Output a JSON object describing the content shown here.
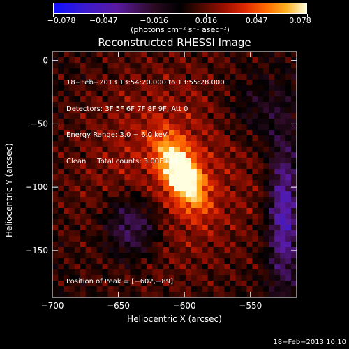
{
  "colorbar": {
    "ticks": [
      -0.078,
      -0.047,
      -0.016,
      0.016,
      0.047,
      0.078
    ],
    "tick_labels": [
      "−0.078",
      "−0.047",
      "−0.016",
      "0.016",
      "0.047",
      "0.078"
    ],
    "unit_label": "(photons cm⁻² s⁻¹ asec⁻²)"
  },
  "chart_data": {
    "type": "heatmap",
    "title": "Reconstructed RHESSI Image",
    "xlabel": "Heliocentric X (arcsec)",
    "ylabel": "Heliocentric Y (arcsec)",
    "xlim": [
      -700,
      -515
    ],
    "ylim": [
      -187,
      7
    ],
    "x_ticks": [
      -700,
      -650,
      -600,
      -550
    ],
    "x_tick_labels": [
      "−700",
      "−650",
      "−600",
      "−550"
    ],
    "y_ticks": [
      0,
      -50,
      -100,
      -150
    ],
    "y_tick_labels": [
      "0",
      "−50",
      "−100",
      "−150"
    ],
    "value_range": [
      -0.078,
      0.078
    ],
    "peak": [
      -602,
      -89
    ],
    "annotations": [
      "18−Feb−2013 13:54:20.000 to 13:55:28.000",
      "Detectors: 3F 5F 6F 7F 8F 9F, Att 0",
      "Energy Range: 3.0 − 6.0 keV",
      "Clean     Total counts: 3.00E+03"
    ],
    "peak_label": "Position of Peak = [−602,−89]"
  },
  "footer_timestamp": "18−Feb−2013 10:10"
}
